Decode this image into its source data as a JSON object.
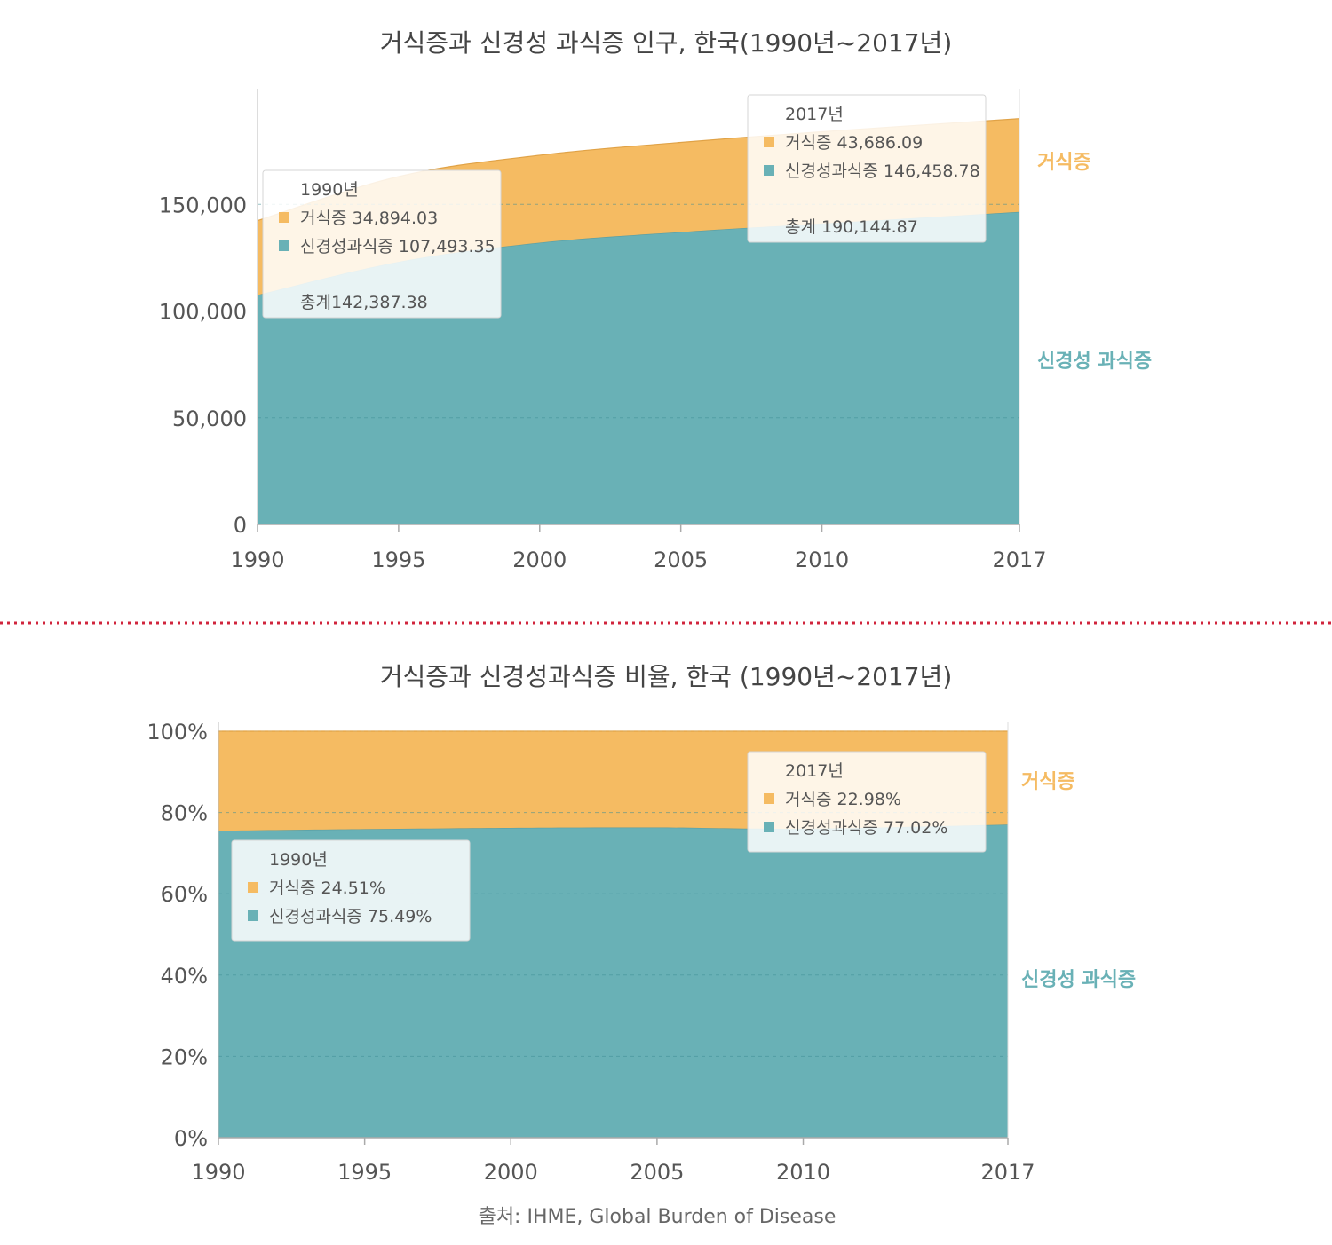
{
  "colors": {
    "anorexia": "#f5bb62",
    "bulimia": "#69b1b6",
    "divider": "#d0243c",
    "grid": "#3f8f95"
  },
  "chart_data": [
    {
      "type": "area",
      "stacked": true,
      "title": "거식증과 신경성 과식증 인구, 한국(1990년~2017년)",
      "x": [
        1990,
        1995,
        2000,
        2005,
        2010,
        2017
      ],
      "x_tick_labels": [
        "1990",
        "1995",
        "2000",
        "2005",
        "2010",
        "2017"
      ],
      "y_tick_labels": [
        "0",
        "50,000",
        "100,000",
        "150,000"
      ],
      "ylim": [
        0,
        200000
      ],
      "grid": true,
      "series": [
        {
          "name": "신경성 과식증",
          "key": "bulimia",
          "values": [
            107493.35,
            123000,
            132000,
            137000,
            141000,
            146458.78
          ]
        },
        {
          "name": "거식증",
          "key": "anorexia",
          "values": [
            34894.03,
            40000,
            41000,
            42000,
            43000,
            43686.09
          ]
        }
      ],
      "tooltips": [
        {
          "year_label": "1990년",
          "lines": [
            "거식증 34,894.03",
            "신경성과식증 107,493.35"
          ],
          "total": "총계142,387.38"
        },
        {
          "year_label": "2017년",
          "lines": [
            "거식증 43,686.09",
            "신경성과식증 146,458.78"
          ],
          "total": "총계 190,144.87"
        }
      ]
    },
    {
      "type": "area",
      "stacked": true,
      "percent": true,
      "title": "거식증과 신경성과식증 비율, 한국 (1990년~2017년)",
      "x": [
        1990,
        1995,
        2000,
        2005,
        2010,
        2017
      ],
      "x_tick_labels": [
        "1990",
        "1995",
        "2000",
        "2005",
        "2010",
        "2017"
      ],
      "y_tick_labels": [
        "0%",
        "20%",
        "40%",
        "60%",
        "80%",
        "100%"
      ],
      "ylim": [
        0,
        100
      ],
      "grid": true,
      "series": [
        {
          "name": "신경성 과식증",
          "key": "bulimia",
          "values": [
            75.49,
            75.9,
            76.2,
            76.3,
            76.0,
            77.02
          ]
        },
        {
          "name": "거식증",
          "key": "anorexia",
          "values": [
            24.51,
            24.1,
            23.8,
            23.7,
            24.0,
            22.98
          ]
        }
      ],
      "tooltips": [
        {
          "year_label": "1990년",
          "lines": [
            "거식증 24.51%",
            "신경성과식증 75.49%"
          ]
        },
        {
          "year_label": "2017년",
          "lines": [
            "거식증 22.98%",
            "신경성과식증 77.02%"
          ]
        }
      ]
    }
  ],
  "source": "출처: IHME, Global Burden of Disease"
}
